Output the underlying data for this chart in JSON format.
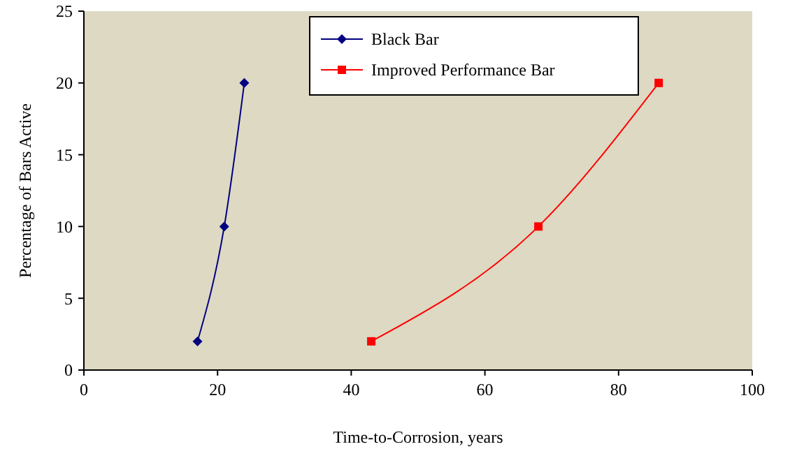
{
  "chart_data": {
    "type": "line",
    "xlabel": "Time-to-Corrosion, years",
    "ylabel": "Percentage of Bars Active",
    "xlim": [
      0,
      100
    ],
    "xticks": [
      0,
      20,
      40,
      60,
      80,
      100
    ],
    "ylim": [
      0,
      25
    ],
    "yticks": [
      0,
      5,
      10,
      15,
      20,
      25
    ],
    "grid": false,
    "legend": "top",
    "series": [
      {
        "name": "Black Bar",
        "color": "#000080",
        "marker": "diamond",
        "x": [
          17,
          21,
          24
        ],
        "values": [
          2,
          10,
          20
        ]
      },
      {
        "name": "Improved Performance Bar",
        "color": "#ff0000",
        "marker": "square",
        "x": [
          43,
          68,
          86
        ],
        "values": [
          2,
          10,
          20
        ]
      }
    ]
  }
}
